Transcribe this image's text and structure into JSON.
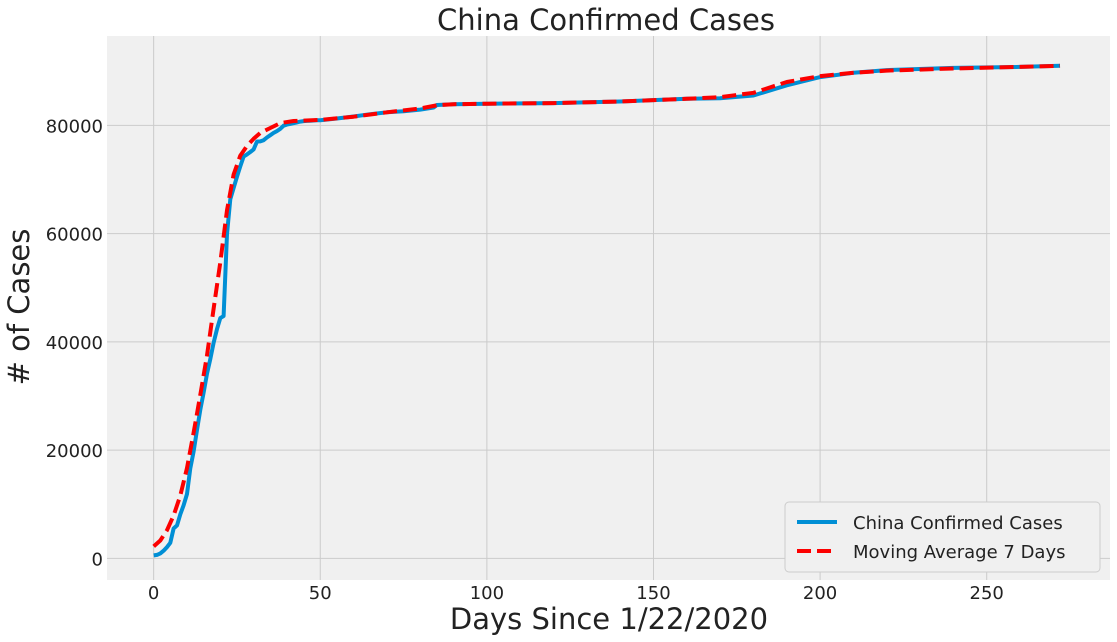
{
  "chart_data": {
    "type": "line",
    "title": "China Confirmed Cases",
    "xlabel": "Days Since 1/22/2020",
    "ylabel": "# of Cases",
    "xlim": [
      -14,
      287
    ],
    "ylim": [
      -4000,
      96500
    ],
    "xticks": [
      0,
      50,
      100,
      150,
      200,
      250
    ],
    "yticks": [
      0,
      20000,
      40000,
      60000,
      80000
    ],
    "grid": true,
    "legend_position": "lower-right",
    "background": "#f0f0f0",
    "series": [
      {
        "name": "China Confirmed Cases",
        "color": "#008fd5",
        "style": "solid",
        "points": [
          [
            0,
            548
          ],
          [
            1,
            643
          ],
          [
            2,
            920
          ],
          [
            3,
            1406
          ],
          [
            4,
            2075
          ],
          [
            5,
            2877
          ],
          [
            6,
            5509
          ],
          [
            7,
            6087
          ],
          [
            8,
            8141
          ],
          [
            9,
            9802
          ],
          [
            10,
            11891
          ],
          [
            11,
            16630
          ],
          [
            12,
            19716
          ],
          [
            13,
            23707
          ],
          [
            14,
            27440
          ],
          [
            15,
            30587
          ],
          [
            16,
            34110
          ],
          [
            17,
            36814
          ],
          [
            18,
            39829
          ],
          [
            19,
            42354
          ],
          [
            20,
            44386
          ],
          [
            21,
            44759
          ],
          [
            22,
            59895
          ],
          [
            23,
            66358
          ],
          [
            24,
            68413
          ],
          [
            25,
            70513
          ],
          [
            26,
            72434
          ],
          [
            27,
            74211
          ],
          [
            28,
            74619
          ],
          [
            29,
            75077
          ],
          [
            30,
            75550
          ],
          [
            31,
            77001
          ],
          [
            32,
            77022
          ],
          [
            33,
            77241
          ],
          [
            34,
            77754
          ],
          [
            35,
            78166
          ],
          [
            36,
            78600
          ],
          [
            37,
            78928
          ],
          [
            38,
            79356
          ],
          [
            39,
            79932
          ],
          [
            40,
            80136
          ],
          [
            41,
            80261
          ],
          [
            42,
            80386
          ],
          [
            43,
            80537
          ],
          [
            44,
            80690
          ],
          [
            45,
            80770
          ],
          [
            46,
            80823
          ],
          [
            47,
            80860
          ],
          [
            48,
            80887
          ],
          [
            49,
            80921
          ],
          [
            50,
            80932
          ],
          [
            55,
            81250
          ],
          [
            60,
            81620
          ],
          [
            65,
            82050
          ],
          [
            70,
            82400
          ],
          [
            75,
            82600
          ],
          [
            80,
            82900
          ],
          [
            84,
            83300
          ],
          [
            85,
            83750
          ],
          [
            90,
            83900
          ],
          [
            100,
            84000
          ],
          [
            120,
            84100
          ],
          [
            140,
            84400
          ],
          [
            160,
            84900
          ],
          [
            170,
            85000
          ],
          [
            180,
            85500
          ],
          [
            190,
            87400
          ],
          [
            200,
            88900
          ],
          [
            210,
            89700
          ],
          [
            220,
            90200
          ],
          [
            240,
            90600
          ],
          [
            260,
            90800
          ],
          [
            272,
            91000
          ]
        ]
      },
      {
        "name": "Moving Average 7 Days",
        "color": "#fc0000",
        "style": "dashed",
        "points": [
          [
            0,
            2200
          ],
          [
            2,
            3300
          ],
          [
            4,
            5200
          ],
          [
            6,
            7900
          ],
          [
            8,
            11600
          ],
          [
            10,
            16700
          ],
          [
            12,
            23200
          ],
          [
            14,
            30200
          ],
          [
            16,
            37500
          ],
          [
            18,
            46100
          ],
          [
            20,
            54700
          ],
          [
            22,
            64300
          ],
          [
            24,
            70900
          ],
          [
            26,
            74400
          ],
          [
            28,
            76200
          ],
          [
            30,
            77500
          ],
          [
            32,
            78600
          ],
          [
            35,
            79500
          ],
          [
            38,
            80400
          ],
          [
            42,
            80800
          ],
          [
            50,
            81000
          ],
          [
            60,
            81600
          ],
          [
            70,
            82400
          ],
          [
            80,
            83100
          ],
          [
            85,
            83700
          ],
          [
            90,
            83900
          ],
          [
            100,
            84000
          ],
          [
            120,
            84100
          ],
          [
            140,
            84400
          ],
          [
            160,
            84900
          ],
          [
            170,
            85200
          ],
          [
            180,
            86000
          ],
          [
            190,
            88000
          ],
          [
            200,
            89100
          ],
          [
            210,
            89700
          ],
          [
            220,
            90100
          ],
          [
            240,
            90500
          ],
          [
            260,
            90800
          ],
          [
            272,
            91000
          ]
        ]
      }
    ]
  }
}
